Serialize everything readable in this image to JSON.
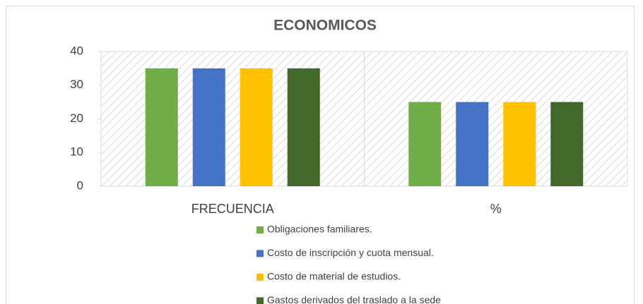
{
  "chart_data": {
    "type": "bar",
    "title": "ECONOMICOS",
    "categories": [
      "FRECUENCIA",
      "%"
    ],
    "series": [
      {
        "name": "Obligaciones familiares.",
        "color": "#70ad47",
        "values": [
          35,
          25
        ]
      },
      {
        "name": "Costo de inscripción y cuota mensual.",
        "color": "#4472c4",
        "values": [
          35,
          25
        ]
      },
      {
        "name": "Costo de material de estudios.",
        "color": "#ffc000",
        "values": [
          35,
          25
        ]
      },
      {
        "name": "Gastos derivados del traslado a la sede",
        "color": "#43682b",
        "values": [
          35,
          25
        ]
      }
    ],
    "ylim": [
      0,
      40
    ],
    "yticks": [
      0,
      10,
      20,
      30,
      40
    ],
    "legend": "bottom"
  }
}
